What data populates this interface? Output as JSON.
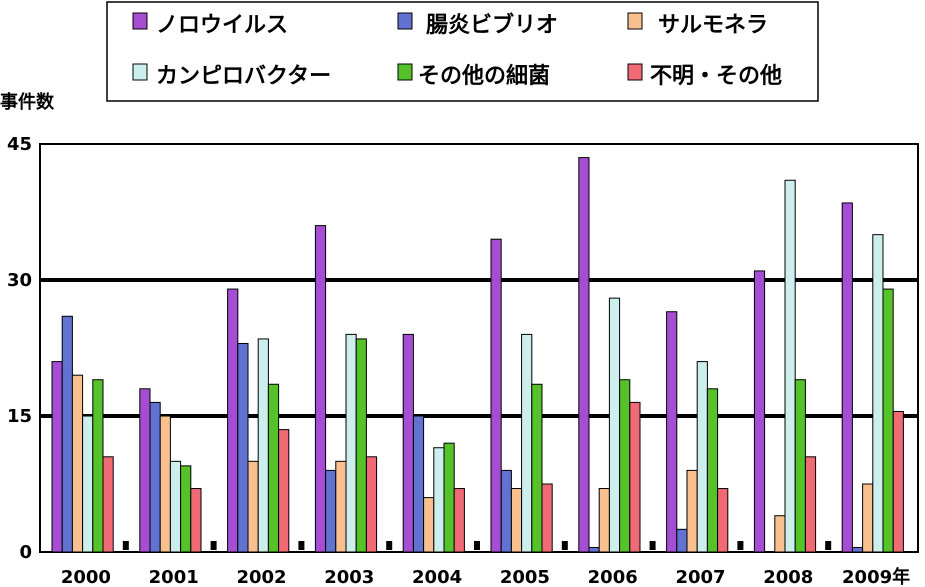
{
  "chart_data": {
    "type": "bar",
    "ylabel": "事件数",
    "ylim": [
      0,
      45
    ],
    "yticks": [
      "0",
      "15",
      "30",
      "45"
    ],
    "grid": true,
    "legend_position": "top",
    "categories": [
      "2000",
      "2001",
      "2002",
      "2003",
      "2004",
      "2005",
      "2006",
      "2007",
      "2008",
      "2009年"
    ],
    "series": [
      {
        "name": "ノロウイルス",
        "color": "#a64ed3",
        "values": [
          21,
          18,
          29,
          36,
          24,
          34.5,
          43.5,
          26.5,
          31,
          38.5
        ]
      },
      {
        "name": "腸炎ビブリオ",
        "color": "#6272d1",
        "values": [
          26,
          16.5,
          23,
          9,
          15,
          9,
          0.5,
          2.5,
          0,
          0.5
        ]
      },
      {
        "name": "サルモネラ",
        "color": "#f8c08e",
        "values": [
          19.5,
          15,
          10,
          10,
          6,
          7,
          7,
          9,
          4,
          7.5
        ]
      },
      {
        "name": "カンピロバクター",
        "color": "#cceeec",
        "values": [
          15,
          10,
          23.5,
          24,
          11.5,
          24,
          28,
          21,
          41,
          35
        ]
      },
      {
        "name": "その他の細菌",
        "color": "#55c22a",
        "values": [
          19,
          9.5,
          18.5,
          23.5,
          12,
          18.5,
          19,
          18,
          19,
          29
        ]
      },
      {
        "name": "不明・その他",
        "color": "#ef6a74",
        "values": [
          10.5,
          7,
          13.5,
          10.5,
          7,
          7.5,
          16.5,
          7,
          10.5,
          15.5
        ]
      }
    ]
  }
}
